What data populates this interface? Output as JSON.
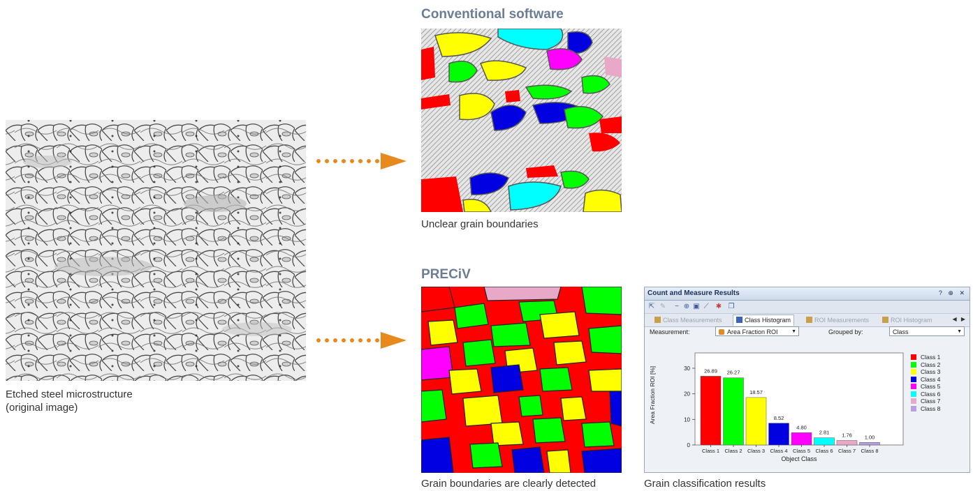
{
  "original": {
    "caption_line1": "Etched steel microstructure",
    "caption_line2": "(original image)"
  },
  "conventional": {
    "heading": "Conventional software",
    "caption": "Unclear grain boundaries"
  },
  "preciv": {
    "heading": "PRECiV",
    "caption": "Grain boundaries are clearly detected"
  },
  "results": {
    "caption": "Grain classification results",
    "panel_title": "Count and Measure Results",
    "title_controls": "? ⊕ ✕",
    "tabs": [
      {
        "label": "Class Measurements",
        "active": false
      },
      {
        "label": "Class Histogram",
        "active": true
      },
      {
        "label": "ROI Measurements",
        "active": false
      },
      {
        "label": "ROI Histogram",
        "active": false
      }
    ],
    "measurement_label": "Measurement:",
    "measurement_value": "Area Fraction ROI",
    "grouped_label": "Grouped by:",
    "grouped_value": "Class"
  },
  "colors": {
    "arrow": "#e8891d",
    "heading": "#6a7d95"
  },
  "chart_data": {
    "type": "bar",
    "categories": [
      "Class 1",
      "Class 2",
      "Class 3",
      "Class 4",
      "Class 5",
      "Class 6",
      "Class 7",
      "Class 8"
    ],
    "values": [
      26.89,
      26.27,
      18.57,
      8.52,
      4.8,
      2.81,
      1.76,
      1.0
    ],
    "value_labels": [
      "26.89",
      "26.27",
      "18.57",
      "8.52",
      "4.80",
      "2.81",
      "1.76",
      "1.00"
    ],
    "colors": [
      "#ff0000",
      "#00ff00",
      "#ffff00",
      "#0000e0",
      "#ff00ff",
      "#00ffff",
      "#e8a8c8",
      "#b8a0e0"
    ],
    "title": "",
    "xlabel": "Object Class",
    "ylabel": "Area Fraction ROI [%]",
    "ylim": [
      0,
      36
    ],
    "yticks": [
      0,
      10,
      20,
      30
    ],
    "legend": [
      "Class 1",
      "Class 2",
      "Class 3",
      "Class 4",
      "Class 5",
      "Class 6",
      "Class 7",
      "Class 8"
    ],
    "legend_position": "right",
    "grid": false
  }
}
